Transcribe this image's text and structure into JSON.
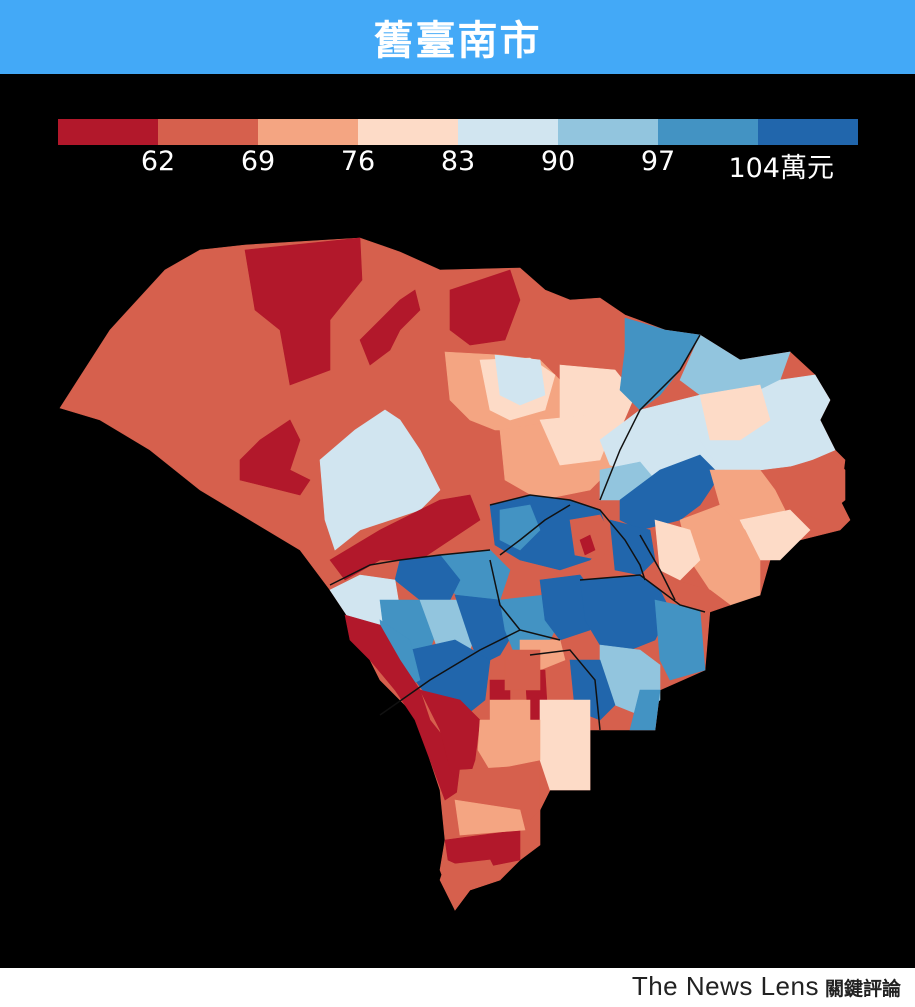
{
  "title": "舊臺南市",
  "legend": {
    "colors": [
      "#b2182b",
      "#d6604d",
      "#f4a582",
      "#fddbc7",
      "#d1e5f0",
      "#92c5de",
      "#4393c3",
      "#2166ac"
    ],
    "labels": [
      "62",
      "69",
      "76",
      "83",
      "90",
      "97",
      "104萬元"
    ]
  },
  "footer": {
    "brand_en": "The News Lens",
    "brand_zh": "關鍵評論"
  }
}
